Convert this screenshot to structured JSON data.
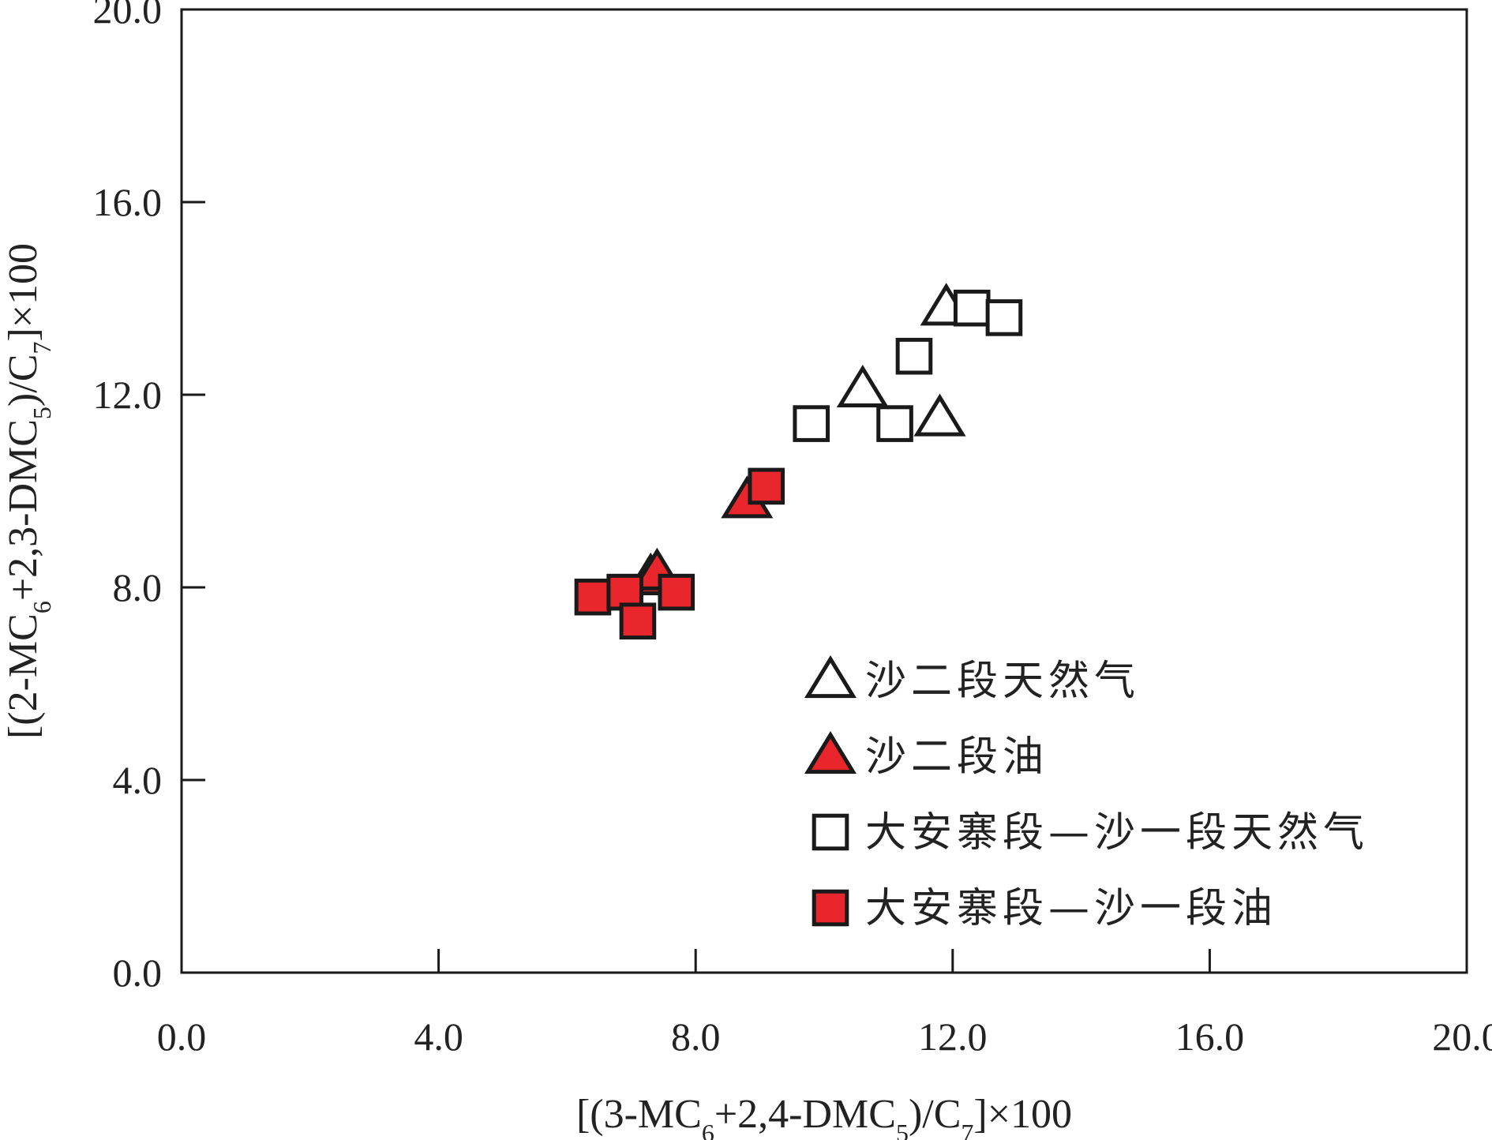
{
  "chart_data": {
    "type": "scatter",
    "title": "",
    "xlabel": "[(3-MC6+2,4-DMC5)/C7]×100",
    "ylabel": "[(2-MC6+2,3-DMC5)/C7]×100",
    "xlim": [
      0,
      20
    ],
    "ylim": [
      0,
      20
    ],
    "x_ticks": [
      "0.0",
      "4.0",
      "8.0",
      "12.0",
      "16.0",
      "20.0"
    ],
    "y_ticks": [
      "0.0",
      "4.0",
      "8.0",
      "12.0",
      "16.0",
      "20.0"
    ],
    "x_tick_values": [
      0,
      4,
      8,
      12,
      16,
      20
    ],
    "y_tick_values": [
      0,
      4,
      8,
      12,
      16,
      20
    ],
    "grid": false,
    "legend_position": "bottom-right",
    "colors": {
      "fill_red": "#e8262b",
      "stroke": "#1a1a1a",
      "open_fill": "#ffffff"
    },
    "series": [
      {
        "name": "沙二段天然气",
        "marker": "triangle",
        "filled": false,
        "points": [
          {
            "x": 10.6,
            "y": 12.1
          },
          {
            "x": 11.9,
            "y": 13.8
          },
          {
            "x": 11.8,
            "y": 11.5
          }
        ]
      },
      {
        "name": "沙二段油",
        "marker": "triangle",
        "filled": true,
        "points": [
          {
            "x": 8.8,
            "y": 9.8
          },
          {
            "x": 7.3,
            "y": 8.2
          },
          {
            "x": 7.4,
            "y": 8.3
          }
        ]
      },
      {
        "name": "大安寨段—沙一段天然气",
        "marker": "square",
        "filled": false,
        "points": [
          {
            "x": 9.8,
            "y": 11.4
          },
          {
            "x": 11.1,
            "y": 11.4
          },
          {
            "x": 11.4,
            "y": 12.8
          },
          {
            "x": 12.3,
            "y": 13.8
          },
          {
            "x": 12.8,
            "y": 13.6
          }
        ]
      },
      {
        "name": "大安寨段—沙一段油",
        "marker": "square",
        "filled": true,
        "points": [
          {
            "x": 9.1,
            "y": 10.1
          },
          {
            "x": 6.4,
            "y": 7.8
          },
          {
            "x": 6.9,
            "y": 7.9
          },
          {
            "x": 7.1,
            "y": 7.3
          },
          {
            "x": 7.7,
            "y": 7.9
          }
        ]
      }
    ]
  }
}
